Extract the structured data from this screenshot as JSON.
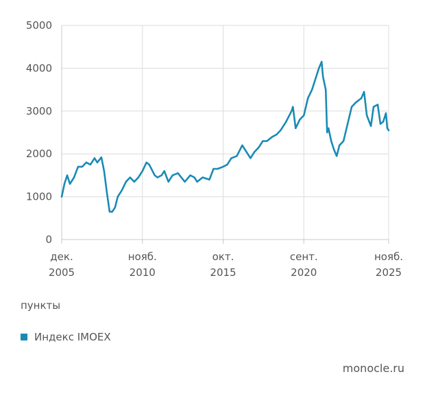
{
  "chart_data": {
    "type": "line",
    "unit_label": "пункты",
    "legend_position": "bottom-left",
    "grid": true,
    "ylim": [
      0,
      5000
    ],
    "yticks": [
      0,
      1000,
      2000,
      3000,
      4000,
      5000
    ],
    "xlim": [
      "2005-12",
      "2025-11"
    ],
    "xticks": [
      {
        "date": "2005-12",
        "label1": "дек.",
        "label2": "2005"
      },
      {
        "date": "2010-11",
        "label1": "нояб.",
        "label2": "2010"
      },
      {
        "date": "2015-10",
        "label1": "окт.",
        "label2": "2015"
      },
      {
        "date": "2020-09",
        "label1": "сент.",
        "label2": "2020"
      },
      {
        "date": "2025-11",
        "label1": "нояб.",
        "label2": "2025"
      }
    ],
    "series": [
      {
        "name": "Индекс IMOEX",
        "color": "#1a8ab5",
        "points": [
          [
            "2005-12",
            1000
          ],
          [
            "2006-02",
            1300
          ],
          [
            "2006-04",
            1500
          ],
          [
            "2006-06",
            1300
          ],
          [
            "2006-09",
            1450
          ],
          [
            "2006-12",
            1700
          ],
          [
            "2007-03",
            1700
          ],
          [
            "2007-06",
            1800
          ],
          [
            "2007-09",
            1750
          ],
          [
            "2007-12",
            1900
          ],
          [
            "2008-02",
            1800
          ],
          [
            "2008-05",
            1920
          ],
          [
            "2008-07",
            1600
          ],
          [
            "2008-09",
            1100
          ],
          [
            "2008-11",
            650
          ],
          [
            "2009-01",
            650
          ],
          [
            "2009-03",
            750
          ],
          [
            "2009-05",
            1000
          ],
          [
            "2009-08",
            1150
          ],
          [
            "2009-11",
            1350
          ],
          [
            "2010-02",
            1450
          ],
          [
            "2010-05",
            1350
          ],
          [
            "2010-08",
            1450
          ],
          [
            "2010-11",
            1600
          ],
          [
            "2011-02",
            1800
          ],
          [
            "2011-04",
            1750
          ],
          [
            "2011-08",
            1500
          ],
          [
            "2011-10",
            1450
          ],
          [
            "2012-01",
            1500
          ],
          [
            "2012-03",
            1600
          ],
          [
            "2012-06",
            1350
          ],
          [
            "2012-09",
            1500
          ],
          [
            "2013-01",
            1550
          ],
          [
            "2013-06",
            1350
          ],
          [
            "2013-10",
            1500
          ],
          [
            "2014-01",
            1450
          ],
          [
            "2014-03",
            1350
          ],
          [
            "2014-07",
            1450
          ],
          [
            "2014-12",
            1400
          ],
          [
            "2015-03",
            1650
          ],
          [
            "2015-06",
            1650
          ],
          [
            "2015-10",
            1700
          ],
          [
            "2016-01",
            1750
          ],
          [
            "2016-04",
            1900
          ],
          [
            "2016-08",
            1950
          ],
          [
            "2016-12",
            2200
          ],
          [
            "2017-02",
            2100
          ],
          [
            "2017-06",
            1900
          ],
          [
            "2017-09",
            2050
          ],
          [
            "2017-12",
            2150
          ],
          [
            "2018-03",
            2300
          ],
          [
            "2018-06",
            2300
          ],
          [
            "2018-10",
            2400
          ],
          [
            "2019-01",
            2450
          ],
          [
            "2019-04",
            2550
          ],
          [
            "2019-08",
            2750
          ],
          [
            "2019-12",
            3000
          ],
          [
            "2020-01",
            3100
          ],
          [
            "2020-03",
            2600
          ],
          [
            "2020-06",
            2800
          ],
          [
            "2020-09",
            2900
          ],
          [
            "2020-12",
            3300
          ],
          [
            "2021-03",
            3500
          ],
          [
            "2021-06",
            3800
          ],
          [
            "2021-08",
            4000
          ],
          [
            "2021-10",
            4150
          ],
          [
            "2021-11",
            3800
          ],
          [
            "2022-01",
            3500
          ],
          [
            "2022-02",
            2500
          ],
          [
            "2022-03",
            2600
          ],
          [
            "2022-05",
            2300
          ],
          [
            "2022-07",
            2100
          ],
          [
            "2022-09",
            1950
          ],
          [
            "2022-11",
            2200
          ],
          [
            "2023-02",
            2300
          ],
          [
            "2023-05",
            2700
          ],
          [
            "2023-08",
            3100
          ],
          [
            "2023-11",
            3200
          ],
          [
            "2024-03",
            3300
          ],
          [
            "2024-05",
            3450
          ],
          [
            "2024-07",
            2900
          ],
          [
            "2024-10",
            2650
          ],
          [
            "2024-12",
            3100
          ],
          [
            "2025-03",
            3150
          ],
          [
            "2025-05",
            2700
          ],
          [
            "2025-07",
            2750
          ],
          [
            "2025-09",
            2950
          ],
          [
            "2025-10",
            2600
          ],
          [
            "2025-11",
            2550
          ]
        ]
      }
    ]
  },
  "source_label": "monocle.ru"
}
